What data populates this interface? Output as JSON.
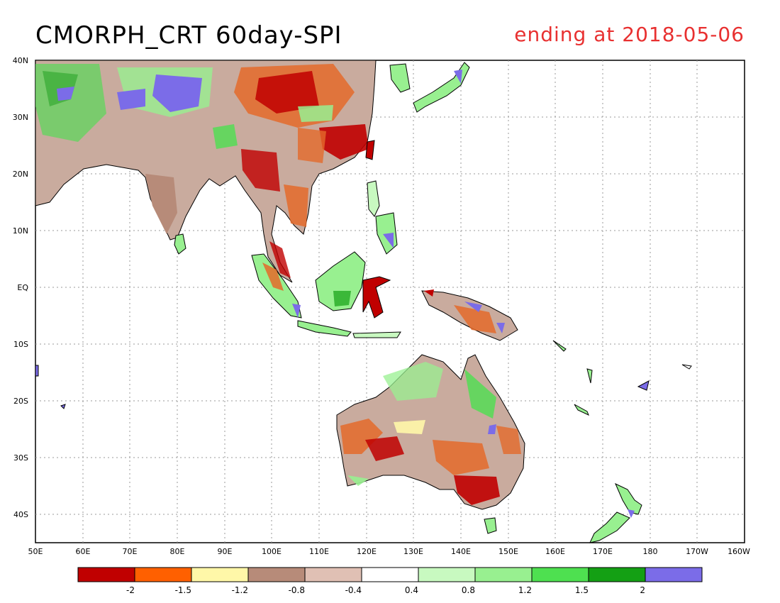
{
  "title": {
    "left": "CMORPH_CRT 60day-SPI",
    "right": "ending at 2018-05-06"
  },
  "map": {
    "lat_labels": [
      "40N",
      "30N",
      "20N",
      "10N",
      "EQ",
      "10S",
      "20S",
      "30S",
      "40S"
    ],
    "lon_labels": [
      "50E",
      "60E",
      "70E",
      "80E",
      "90E",
      "100E",
      "110E",
      "120E",
      "130E",
      "140E",
      "150E",
      "160E",
      "170E",
      "180",
      "170W",
      "160W"
    ]
  },
  "colorbar": {
    "colors": [
      "#c00000",
      "#ff6000",
      "#fff7a8",
      "#b78b79",
      "#e0c0b4",
      "#ffffff",
      "#c8f9c0",
      "#98f090",
      "#4ee050",
      "#14a014",
      "#7b6ce8"
    ],
    "labels": [
      "-2",
      "-1.5",
      "-1.2",
      "-0.8",
      "-0.4",
      "0.4",
      "0.8",
      "1.2",
      "1.5",
      "2"
    ]
  },
  "legend_palette": {
    "land_outline": "#000000",
    "grid": "#9a9a9a"
  }
}
